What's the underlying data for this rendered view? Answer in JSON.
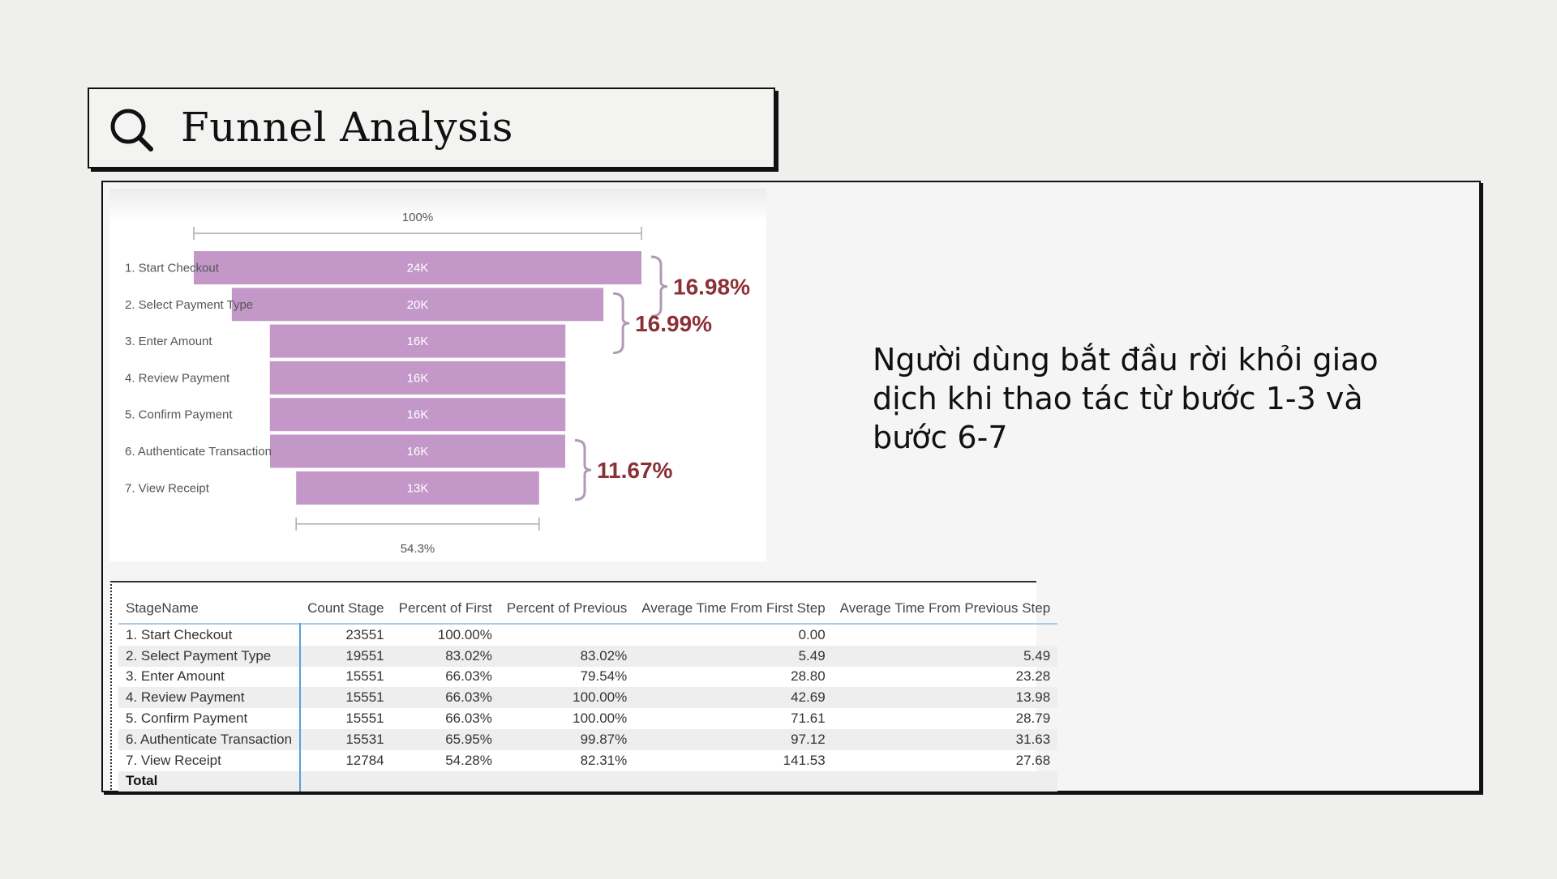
{
  "header": {
    "title": "Funnel Analysis",
    "icon": "search-icon"
  },
  "note": "Người dùng bắt đầu rời khỏi giao dịch khi thao tác từ bước 1-3 và bước 6-7",
  "chart_data": {
    "type": "funnel",
    "top_label": "100%",
    "bottom_label": "54.3%",
    "bar_color": "#c398c9",
    "annotation_color": "#8b3035",
    "categories": [
      "1. Start Checkout",
      "2. Select Payment Type",
      "3. Enter Amount",
      "4. Review Payment",
      "5. Confirm Payment",
      "6. Authenticate Transaction",
      "7. View Receipt"
    ],
    "values": [
      23551,
      19551,
      15551,
      15551,
      15551,
      15531,
      12784
    ],
    "value_labels": [
      "24K",
      "20K",
      "16K",
      "16K",
      "16K",
      "16K",
      "13K"
    ],
    "annotations": [
      {
        "from": 0,
        "to": 1,
        "label": "16.98%"
      },
      {
        "from": 1,
        "to": 2,
        "label": "16.99%"
      },
      {
        "from": 5,
        "to": 6,
        "label": "11.67%"
      }
    ]
  },
  "table": {
    "columns": [
      "StageName",
      "Count Stage",
      "Percent of First",
      "Percent of Previous",
      "Average Time From First Step",
      "Average Time From Previous Step"
    ],
    "rows": [
      [
        "1. Start Checkout",
        "23551",
        "100.00%",
        "",
        "0.00",
        ""
      ],
      [
        "2. Select Payment Type",
        "19551",
        "83.02%",
        "83.02%",
        "5.49",
        "5.49"
      ],
      [
        "3. Enter Amount",
        "15551",
        "66.03%",
        "79.54%",
        "28.80",
        "23.28"
      ],
      [
        "4. Review Payment",
        "15551",
        "66.03%",
        "100.00%",
        "42.69",
        "13.98"
      ],
      [
        "5. Confirm Payment",
        "15551",
        "66.03%",
        "100.00%",
        "71.61",
        "28.79"
      ],
      [
        "6. Authenticate Transaction",
        "15531",
        "65.95%",
        "99.87%",
        "97.12",
        "31.63"
      ],
      [
        "7. View Receipt",
        "12784",
        "54.28%",
        "82.31%",
        "141.53",
        "27.68"
      ]
    ],
    "total_label": "Total"
  }
}
